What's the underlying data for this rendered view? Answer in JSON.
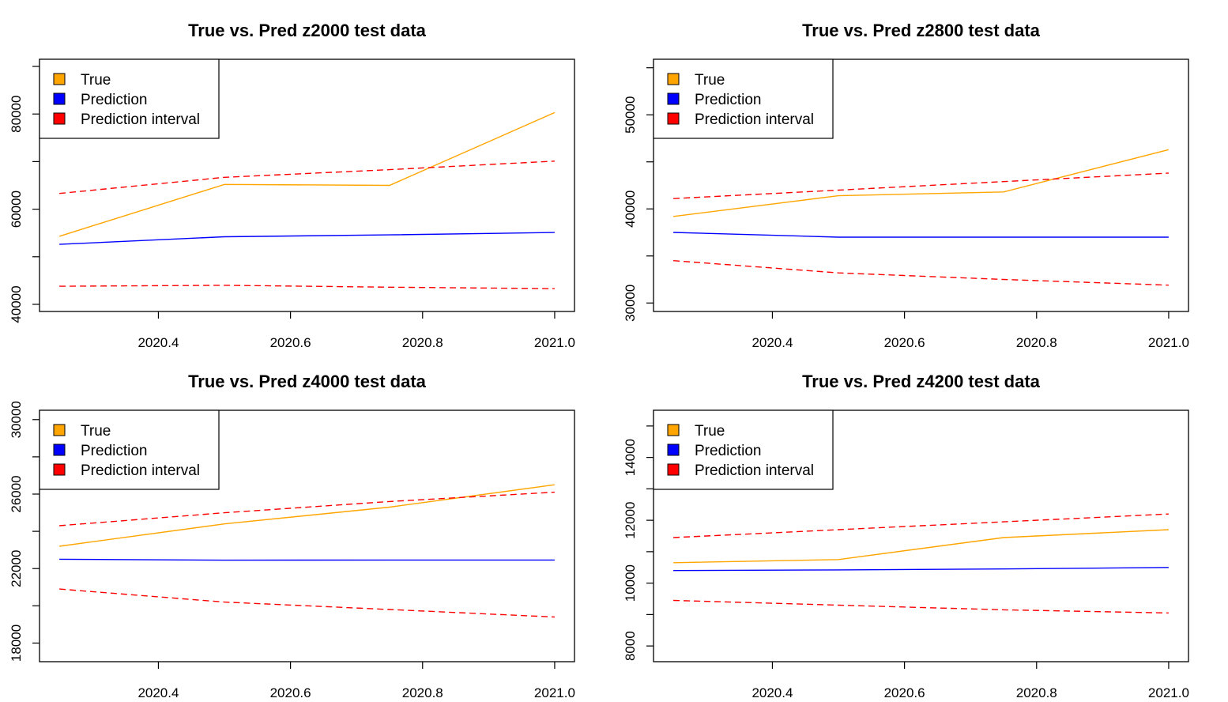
{
  "chart_data": [
    {
      "type": "line",
      "title": "True vs. Pred z2000 test data",
      "xlabel": "",
      "ylabel": "",
      "xlim": [
        2020.22,
        2021.03
      ],
      "ylim": [
        38500,
        91500
      ],
      "x_ticks": [
        "2020.4",
        "2020.6",
        "2020.8",
        "2021.0"
      ],
      "y_ticks": [
        "40000",
        "60000",
        "80000"
      ],
      "grid": false,
      "legend_position": "top-left",
      "x": [
        2020.25,
        2020.5,
        2020.75,
        2021.0
      ],
      "series": [
        {
          "name": "True",
          "color": "#FFA500",
          "style": "solid",
          "values": [
            54300,
            65200,
            65000,
            80300
          ]
        },
        {
          "name": "Prediction",
          "color": "#0000FF",
          "style": "solid",
          "values": [
            52600,
            54200,
            54600,
            55100
          ]
        },
        {
          "name": "Prediction interval",
          "color": "#FF0000",
          "style": "dashed",
          "values": [
            63300,
            66700,
            68300,
            70100
          ]
        },
        {
          "name": "",
          "color": "#FF0000",
          "style": "dashed",
          "values": [
            43800,
            44000,
            43600,
            43300
          ]
        }
      ]
    },
    {
      "type": "line",
      "title": "True vs. Pred z2800 test data",
      "xlabel": "",
      "ylabel": "",
      "xlim": [
        2020.22,
        2021.03
      ],
      "ylim": [
        29100,
        55900
      ],
      "x_ticks": [
        "2020.4",
        "2020.6",
        "2020.8",
        "2021.0"
      ],
      "y_ticks": [
        "30000",
        "40000",
        "50000"
      ],
      "grid": false,
      "legend_position": "top-left",
      "x": [
        2020.25,
        2020.5,
        2020.75,
        2021.0
      ],
      "series": [
        {
          "name": "True",
          "color": "#FFA500",
          "style": "solid",
          "values": [
            39200,
            41400,
            41800,
            46300
          ]
        },
        {
          "name": "Prediction",
          "color": "#0000FF",
          "style": "solid",
          "values": [
            37500,
            37000,
            37000,
            37000
          ]
        },
        {
          "name": "Prediction interval",
          "color": "#FF0000",
          "style": "dashed",
          "values": [
            41100,
            42000,
            42900,
            43800
          ]
        },
        {
          "name": "",
          "color": "#FF0000",
          "style": "dashed",
          "values": [
            34500,
            33200,
            32500,
            31900
          ]
        }
      ]
    },
    {
      "type": "line",
      "title": "True vs. Pred z4000 test data",
      "xlabel": "",
      "ylabel": "",
      "xlim": [
        2020.22,
        2021.03
      ],
      "ylim": [
        17000,
        30500
      ],
      "x_ticks": [
        "2020.4",
        "2020.6",
        "2020.8",
        "2021.0"
      ],
      "y_ticks": [
        "18000",
        "22000",
        "26000",
        "30000"
      ],
      "grid": false,
      "legend_position": "top-left",
      "x": [
        2020.25,
        2020.5,
        2020.75,
        2021.0
      ],
      "series": [
        {
          "name": "True",
          "color": "#FFA500",
          "style": "solid",
          "values": [
            23200,
            24400,
            25300,
            26500
          ]
        },
        {
          "name": "Prediction",
          "color": "#0000FF",
          "style": "solid",
          "values": [
            22500,
            22450,
            22460,
            22460
          ]
        },
        {
          "name": "Prediction interval",
          "color": "#FF0000",
          "style": "dashed",
          "values": [
            24300,
            25000,
            25600,
            26100
          ]
        },
        {
          "name": "",
          "color": "#FF0000",
          "style": "dashed",
          "values": [
            20900,
            20200,
            19800,
            19400
          ]
        }
      ]
    },
    {
      "type": "line",
      "title": "True vs. Pred z4200 test data",
      "xlabel": "",
      "ylabel": "",
      "xlim": [
        2020.22,
        2021.03
      ],
      "ylim": [
        7500,
        15500
      ],
      "x_ticks": [
        "2020.4",
        "2020.6",
        "2020.8",
        "2021.0"
      ],
      "y_ticks": [
        "8000",
        "10000",
        "12000",
        "14000"
      ],
      "grid": false,
      "legend_position": "top-left",
      "x": [
        2020.25,
        2020.5,
        2020.75,
        2021.0
      ],
      "series": [
        {
          "name": "True",
          "color": "#FFA500",
          "style": "solid",
          "values": [
            10650,
            10750,
            11450,
            11700
          ]
        },
        {
          "name": "Prediction",
          "color": "#0000FF",
          "style": "solid",
          "values": [
            10400,
            10420,
            10450,
            10500
          ]
        },
        {
          "name": "Prediction interval",
          "color": "#FF0000",
          "style": "dashed",
          "values": [
            11450,
            11700,
            11950,
            12200
          ]
        },
        {
          "name": "",
          "color": "#FF0000",
          "style": "dashed",
          "values": [
            9450,
            9300,
            9150,
            9050
          ]
        }
      ]
    }
  ]
}
